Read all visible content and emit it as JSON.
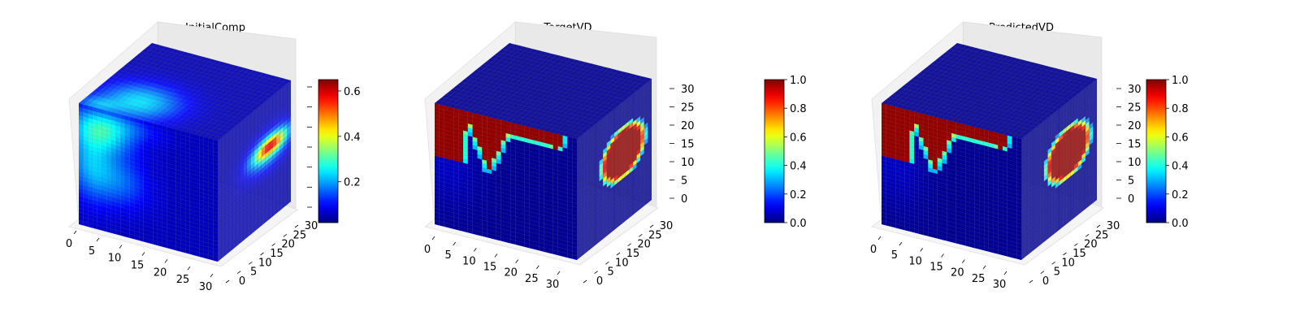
{
  "chart_data": [
    {
      "type": "3d-voxel",
      "title": "InitialComp",
      "axes": {
        "x": {
          "ticks": [
            0,
            5,
            10,
            15,
            20,
            25,
            30
          ],
          "range": [
            0,
            32
          ]
        },
        "y": {
          "ticks": [
            0,
            5,
            10,
            15,
            20,
            25,
            30
          ],
          "range": [
            0,
            32
          ]
        },
        "z": {
          "ticks": [],
          "range": [
            0,
            32
          ]
        }
      },
      "colorbar": {
        "colormap": "jet",
        "min": 0.02,
        "max": 0.65,
        "ticks": [
          0.2,
          0.4,
          0.6
        ],
        "tick_labels": [
          "0.2",
          "0.4",
          "0.6"
        ]
      },
      "grid": true
    },
    {
      "type": "3d-voxel",
      "title": "TargetVD",
      "axes": {
        "x": {
          "ticks": [
            0,
            5,
            10,
            15,
            20,
            25,
            30
          ],
          "range": [
            0,
            32
          ]
        },
        "y": {
          "ticks": [
            0,
            5,
            10,
            15,
            20,
            25,
            30
          ],
          "range": [
            0,
            32
          ]
        },
        "z": {
          "ticks": [
            0,
            5,
            10,
            15,
            20,
            25,
            30
          ],
          "range": [
            0,
            32
          ]
        }
      },
      "colorbar": {
        "colormap": "jet",
        "min": 0.0,
        "max": 1.0,
        "ticks": [
          0.0,
          0.2,
          0.4,
          0.6,
          0.8,
          1.0
        ],
        "tick_labels": [
          "0.0",
          "0.2",
          "0.4",
          "0.6",
          "0.8",
          "1.0"
        ]
      },
      "grid": true
    },
    {
      "type": "3d-voxel",
      "title": "PredictedVD",
      "axes": {
        "x": {
          "ticks": [
            0,
            5,
            10,
            15,
            20,
            25,
            30
          ],
          "range": [
            0,
            32
          ]
        },
        "y": {
          "ticks": [
            0,
            5,
            10,
            15,
            20,
            25,
            30
          ],
          "range": [
            0,
            32
          ]
        },
        "z": {
          "ticks": [
            0,
            5,
            10,
            15,
            20,
            25,
            30
          ],
          "range": [
            0,
            32
          ]
        }
      },
      "colorbar": {
        "colormap": "jet",
        "min": 0.0,
        "max": 1.0,
        "ticks": [
          0.0,
          0.2,
          0.4,
          0.6,
          0.8,
          1.0
        ],
        "tick_labels": [
          "0.0",
          "0.2",
          "0.4",
          "0.6",
          "0.8",
          "1.0"
        ]
      },
      "grid": true
    }
  ]
}
